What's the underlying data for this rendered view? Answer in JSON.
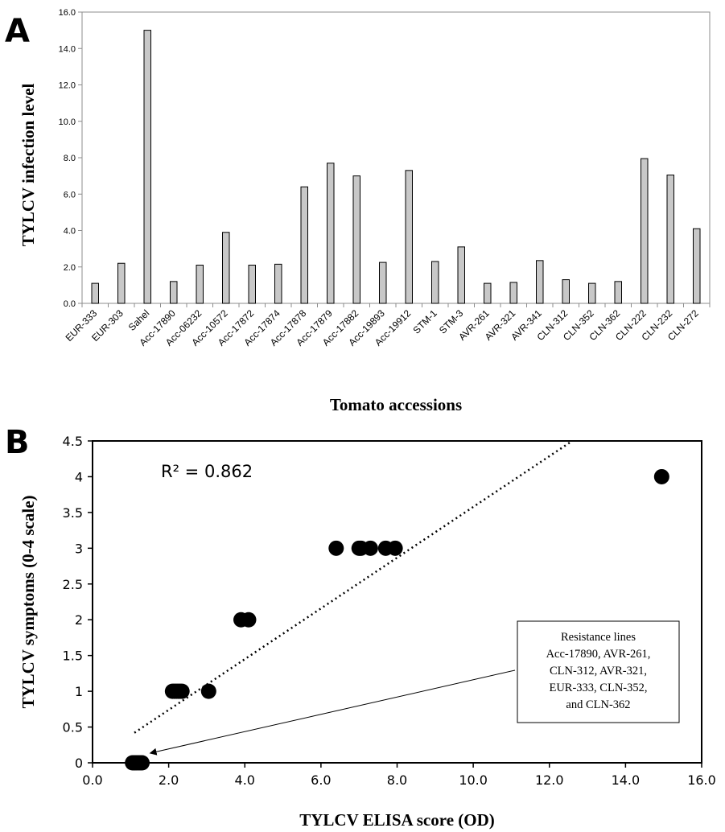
{
  "chart_data": [
    {
      "panel": "A",
      "type": "bar",
      "xlabel": "Tomato accessions",
      "ylabel": "TYLCV infection level",
      "ylim": [
        0,
        16
      ],
      "yticks": [
        "0.0",
        "2.0",
        "4.0",
        "6.0",
        "8.0",
        "10.0",
        "12.0",
        "14.0",
        "16.0"
      ],
      "grid": false,
      "bar_color": "#c8c8c8",
      "categories": [
        "EUR-333",
        "EUR-303",
        "Sahel",
        "Acc-17890",
        "Acc-06232",
        "Acc-10572",
        "Acc-17872",
        "Acc-17874",
        "Acc-17878",
        "Acc-17879",
        "Acc-17882",
        "Acc-19893",
        "Acc-19912",
        "STM-1",
        "STM-3",
        "AVR-261",
        "AVR-321",
        "AVR-341",
        "CLN-312",
        "CLN-352",
        "CLN-362",
        "CLN-222",
        "CLN-232",
        "CLN-272"
      ],
      "values": [
        1.1,
        2.2,
        15.0,
        1.2,
        2.1,
        3.9,
        2.1,
        2.15,
        6.4,
        7.7,
        7.0,
        2.25,
        7.3,
        2.3,
        3.1,
        1.1,
        1.15,
        2.35,
        1.3,
        1.1,
        1.2,
        7.95,
        7.05,
        4.1
      ]
    },
    {
      "panel": "B",
      "type": "scatter",
      "xlabel": "TYLCV ELISA score (OD)",
      "ylabel": "TYLCV symptoms (0-4 scale)",
      "xlim": [
        0,
        16
      ],
      "ylim": [
        0,
        4.5
      ],
      "xticks": [
        "0.0",
        "2.0",
        "4.0",
        "6.0",
        "8.0",
        "10.0",
        "12.0",
        "14.0",
        "16.0"
      ],
      "yticks": [
        "0",
        "0.5",
        "1",
        "1.5",
        "2",
        "2.5",
        "3",
        "3.5",
        "4",
        "4.5"
      ],
      "grid": false,
      "annotation_r2": "R² = 0.862",
      "trendline": {
        "style": "dotted",
        "x": [
          1.1,
          12.6
        ],
        "y": [
          0.42,
          4.5
        ]
      },
      "points": [
        {
          "x": 1.05,
          "y": 0
        },
        {
          "x": 1.1,
          "y": 0
        },
        {
          "x": 1.15,
          "y": 0
        },
        {
          "x": 1.2,
          "y": 0
        },
        {
          "x": 1.25,
          "y": 0
        },
        {
          "x": 1.3,
          "y": 0
        },
        {
          "x": 1.1,
          "y": 0
        },
        {
          "x": 2.1,
          "y": 1
        },
        {
          "x": 2.15,
          "y": 1
        },
        {
          "x": 2.2,
          "y": 1
        },
        {
          "x": 2.25,
          "y": 1
        },
        {
          "x": 2.3,
          "y": 1
        },
        {
          "x": 2.35,
          "y": 1
        },
        {
          "x": 3.05,
          "y": 1
        },
        {
          "x": 3.9,
          "y": 2
        },
        {
          "x": 4.1,
          "y": 2
        },
        {
          "x": 6.4,
          "y": 3
        },
        {
          "x": 7.0,
          "y": 3
        },
        {
          "x": 7.05,
          "y": 3
        },
        {
          "x": 7.3,
          "y": 3
        },
        {
          "x": 7.7,
          "y": 3
        },
        {
          "x": 7.95,
          "y": 3
        },
        {
          "x": 14.95,
          "y": 4
        }
      ],
      "callout_lines": [
        "Resistance lines",
        "Acc-17890, AVR-261,",
        "CLN-312, AVR-321,",
        "EUR-333, CLN-352,",
        "and CLN-362"
      ],
      "callout_target": {
        "x": 1.3,
        "y": 0
      }
    }
  ]
}
